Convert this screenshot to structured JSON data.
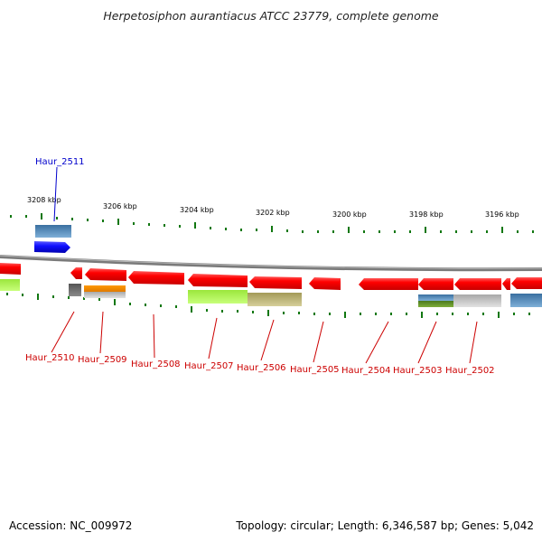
{
  "title": "Herpetosiphon aurantiacus ATCC 23779, complete genome",
  "coordinate_labels": [
    "3208 kbp",
    "3206 kbp",
    "3204 kbp",
    "3202 kbp",
    "3200 kbp",
    "3198 kbp",
    "3196 kbp"
  ],
  "gene_labels": [
    {
      "name": "Haur_2511",
      "color": "#0000cc"
    },
    {
      "name": "Haur_2510",
      "color": "#cc0000"
    },
    {
      "name": "Haur_2509",
      "color": "#cc0000"
    },
    {
      "name": "Haur_2508",
      "color": "#cc0000"
    },
    {
      "name": "Haur_2507",
      "color": "#cc0000"
    },
    {
      "name": "Haur_2506",
      "color": "#cc0000"
    },
    {
      "name": "Haur_2505",
      "color": "#cc0000"
    },
    {
      "name": "Haur_2504",
      "color": "#cc0000"
    },
    {
      "name": "Haur_2503",
      "color": "#cc0000"
    },
    {
      "name": "Haur_2502",
      "color": "#cc0000"
    }
  ],
  "footer": {
    "accession": "Accession: NC_009972",
    "summary": "Topology: circular; Length: 6,346,587 bp; Genes: 5,042"
  },
  "colors": {
    "forward_gene": "#ff0000",
    "reverse_gene": "#1a1aff",
    "tick": "#117711",
    "backbone": "#808080"
  }
}
